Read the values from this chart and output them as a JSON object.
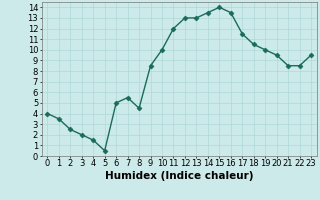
{
  "x": [
    0,
    1,
    2,
    3,
    4,
    5,
    6,
    7,
    8,
    9,
    10,
    11,
    12,
    13,
    14,
    15,
    16,
    17,
    18,
    19,
    20,
    21,
    22,
    23
  ],
  "y": [
    4.0,
    3.5,
    2.5,
    2.0,
    1.5,
    0.5,
    5.0,
    5.5,
    4.5,
    8.5,
    10.0,
    12.0,
    13.0,
    13.0,
    13.5,
    14.0,
    13.5,
    11.5,
    10.5,
    10.0,
    9.5,
    8.5,
    8.5,
    9.5
  ],
  "line_color": "#1a6b5a",
  "bg_color": "#cceaea",
  "grid_color": "#b0d8d8",
  "xlabel": "Humidex (Indice chaleur)",
  "ylabel": "",
  "xlim": [
    -0.5,
    23.5
  ],
  "ylim": [
    0,
    14.5
  ],
  "yticks": [
    0,
    1,
    2,
    3,
    4,
    5,
    6,
    7,
    8,
    9,
    10,
    11,
    12,
    13,
    14
  ],
  "xticks": [
    0,
    1,
    2,
    3,
    4,
    5,
    6,
    7,
    8,
    9,
    10,
    11,
    12,
    13,
    14,
    15,
    16,
    17,
    18,
    19,
    20,
    21,
    22,
    23
  ],
  "marker": "D",
  "marker_size": 2.5,
  "line_width": 1.0,
  "xlabel_fontsize": 7.5,
  "tick_fontsize": 6.0
}
